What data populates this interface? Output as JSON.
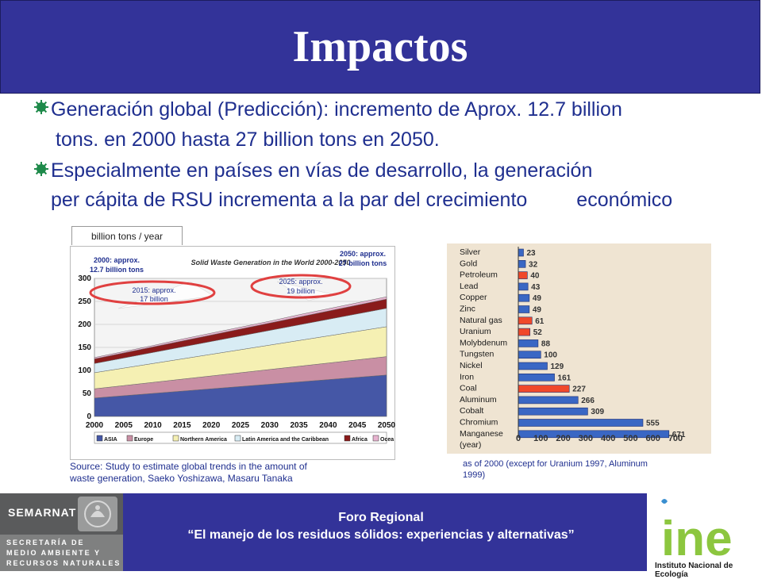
{
  "slide": {
    "title": "Impactos",
    "bullets": [
      {
        "lines": [
          "Generación global (Predicción): incremento de Aprox. 12.7 billion",
          "tons. en 2000 hasta 27 billion tons en 2050."
        ]
      },
      {
        "lines": [
          "Especialmente en países en vías de desarrollo, la generación",
          "per cápita de RSU incrementa a la par del crecimiento",
          "económico"
        ]
      }
    ],
    "colors": {
      "header_bg": "#333399",
      "bullet_icon": "#1e8a4a",
      "text_blue": "#1f2f8f",
      "callout_red": "#e04040"
    }
  },
  "chart_left": {
    "tab_label": "billion tons / year",
    "source": [
      "Source: Study to estimate global trends in the amount of",
      "waste generation, Saeko Yoshizawa, Masaru Tanaka"
    ],
    "annotations": {
      "a2000": [
        "2000: approx.",
        "12.7 billion tons"
      ],
      "a2015": [
        "2015: approx.",
        "17 billion"
      ],
      "a2025": [
        "2025: approx.",
        "19 billion"
      ],
      "a2050": [
        "2050: approx.",
        "27 billion tons"
      ]
    }
  },
  "chart_right": {
    "note": [
      "as of 2000 (except for Uranium 1997, Aluminum",
      "1999)"
    ]
  },
  "chart_data": [
    {
      "type": "area",
      "title": "Solid Waste Generation in the World 2000-2050",
      "x": [
        2000,
        2005,
        2010,
        2015,
        2020,
        2025,
        2030,
        2035,
        2040,
        2045,
        2050
      ],
      "ylim": [
        0,
        300
      ],
      "y_ticks": [
        0,
        50,
        100,
        150,
        200,
        250,
        300
      ],
      "stacked": true,
      "series": [
        {
          "name": "ASIA",
          "color": "#4557a6",
          "values": [
            40,
            45,
            50,
            55,
            60,
            65,
            70,
            75,
            80,
            85,
            90
          ]
        },
        {
          "name": "Europe",
          "color": "#c98fa4",
          "values": [
            20,
            22,
            24,
            26,
            28,
            30,
            32,
            34,
            36,
            38,
            40
          ]
        },
        {
          "name": "Northern America",
          "color": "#f5f0b3",
          "values": [
            35,
            38,
            41,
            44,
            47,
            50,
            53,
            56,
            59,
            62,
            65
          ]
        },
        {
          "name": "Latin America and the Caribbean",
          "color": "#d8ecf4",
          "values": [
            20,
            22,
            24,
            26,
            28,
            30,
            32,
            34,
            36,
            38,
            40
          ]
        },
        {
          "name": "Africa",
          "color": "#8a1b1b",
          "values": [
            10,
            11,
            12,
            13,
            14,
            15,
            16,
            17,
            18,
            19,
            20
          ]
        },
        {
          "name": "Ocea",
          "color": "#e7b3cf",
          "values": [
            3,
            3,
            3,
            4,
            4,
            4,
            4,
            5,
            5,
            5,
            5
          ]
        }
      ]
    },
    {
      "type": "bar",
      "orientation": "horizontal",
      "xlabel": "",
      "xlim": [
        0,
        700
      ],
      "x_ticks": [
        0,
        100,
        200,
        300,
        400,
        500,
        600,
        700
      ],
      "categories": [
        "Silver",
        "Gold",
        "Petroleum",
        "Lead",
        "Copper",
        "Zinc",
        "Natural gas",
        "Uranium",
        "Molybdenum",
        "Tungsten",
        "Nickel",
        "Iron",
        "Coal",
        "Aluminum",
        "Cobalt",
        "Chromium",
        "Manganese"
      ],
      "values": [
        23,
        32,
        40,
        43,
        49,
        49,
        61,
        52,
        88,
        100,
        129,
        161,
        227,
        266,
        309,
        555,
        671
      ],
      "value_labels": [
        "23",
        "32",
        "40",
        "43",
        "49",
        "49",
        "61",
        "52",
        "88",
        "100",
        "129",
        "161",
        "227",
        "266",
        "309",
        "555",
        "671"
      ],
      "colors": [
        "#3a67c4",
        "#3a67c4",
        "#f0482a",
        "#3a67c4",
        "#3a67c4",
        "#3a67c4",
        "#f0482a",
        "#f0482a",
        "#3a67c4",
        "#3a67c4",
        "#3a67c4",
        "#3a67c4",
        "#f0482a",
        "#3a67c4",
        "#3a67c4",
        "#3a67c4",
        "#3a67c4"
      ],
      "trailing_label": "(year)"
    }
  ],
  "footer": {
    "org_name": "SEMARNAT",
    "org_sub": [
      "SECRETARÍA DE",
      "MEDIO AMBIENTE Y",
      "RECURSOS NATURALES"
    ],
    "event_title": "Foro Regional",
    "event_subtitle": "“El manejo de los residuos sólidos: experiencias y alternativas”",
    "institute": "Instituto Nacional de Ecología",
    "institute_logo_text": "ine"
  }
}
